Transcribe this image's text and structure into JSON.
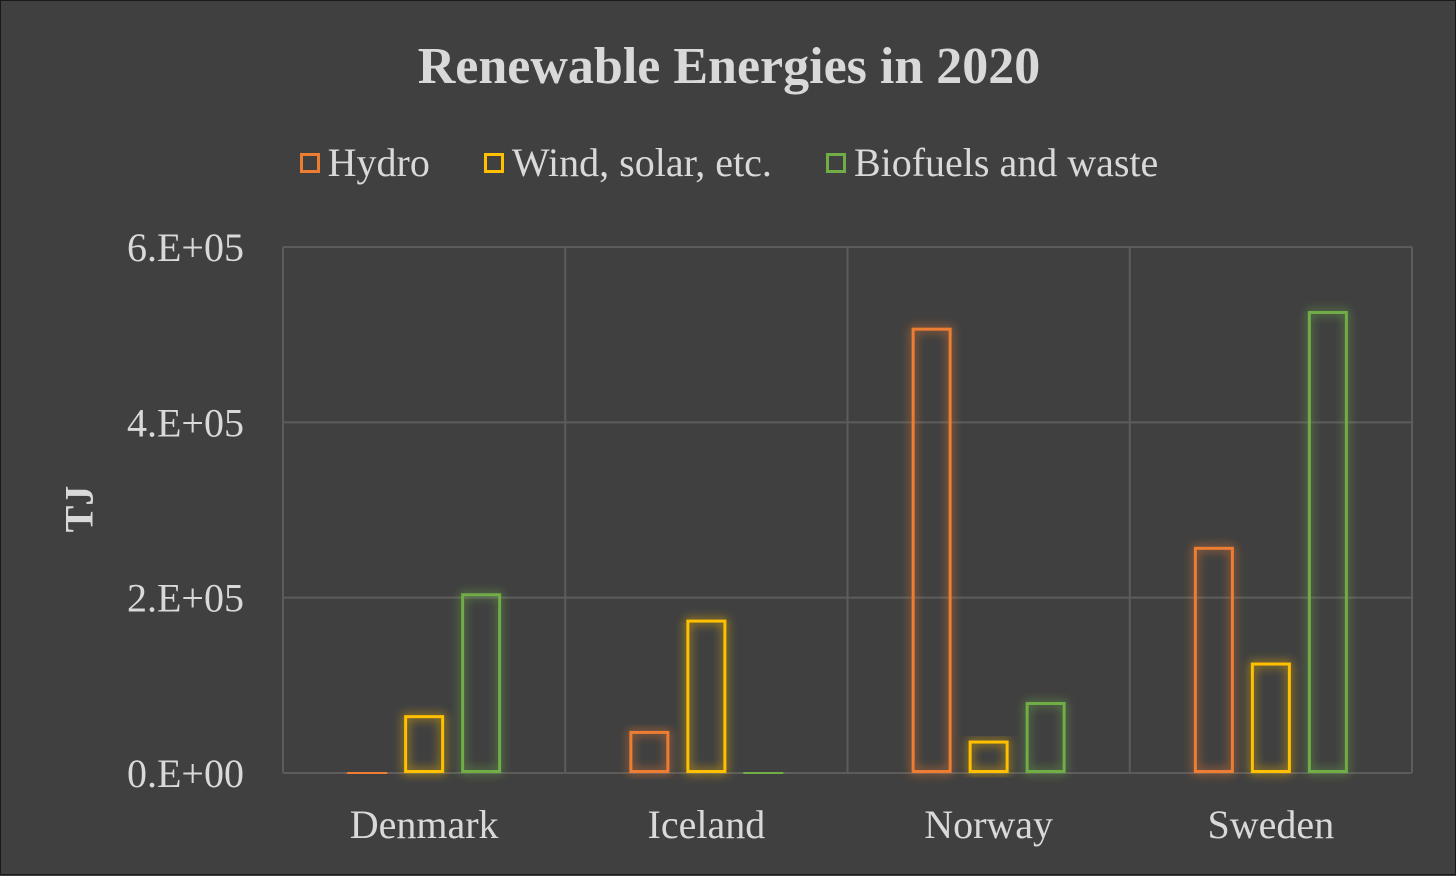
{
  "chart_data": {
    "type": "bar",
    "title": "Renewable Energies in 2020",
    "ylabel": "TJ",
    "xlabel": "",
    "categories": [
      "Denmark",
      "Iceland",
      "Norway",
      "Sweden"
    ],
    "series": [
      {
        "name": "Hydro",
        "color": "#ed7d31",
        "values": [
          2000,
          48000,
          508000,
          258000
        ]
      },
      {
        "name": "Wind, solar, etc.",
        "color": "#ffc000",
        "values": [
          66000,
          175000,
          37000,
          126000
        ]
      },
      {
        "name": "Biofuels and waste",
        "color": "#70ad47",
        "values": [
          205000,
          2000,
          81000,
          527000
        ]
      }
    ],
    "ylim": [
      0,
      600000
    ],
    "yticks": [
      {
        "value": 0,
        "label": "0.E+00"
      },
      {
        "value": 200000,
        "label": "2.E+05"
      },
      {
        "value": 400000,
        "label": "4.E+05"
      },
      {
        "value": 600000,
        "label": "6.E+05"
      }
    ],
    "grid": true,
    "legend_position": "top"
  }
}
